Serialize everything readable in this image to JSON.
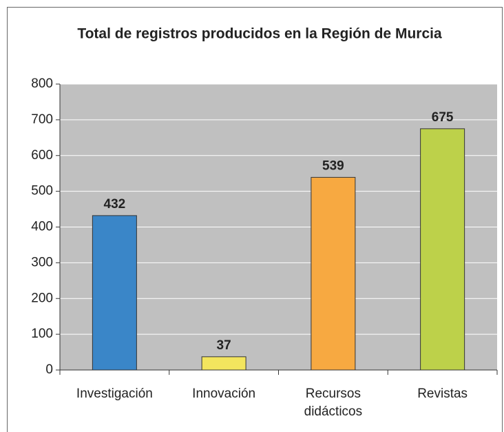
{
  "chart_data": {
    "type": "bar",
    "title": "Total de registros producidos en la Región de Murcia",
    "categories": [
      "Investigación",
      "Innovación",
      "Recursos didácticos",
      "Revistas"
    ],
    "values": [
      432,
      37,
      539,
      675
    ],
    "colors": [
      "#3a86c8",
      "#f3e55e",
      "#f7a941",
      "#bdd14a"
    ],
    "ylim": [
      0,
      800
    ],
    "yticks": [
      0,
      100,
      200,
      300,
      400,
      500,
      600,
      700,
      800
    ],
    "grid": true
  }
}
